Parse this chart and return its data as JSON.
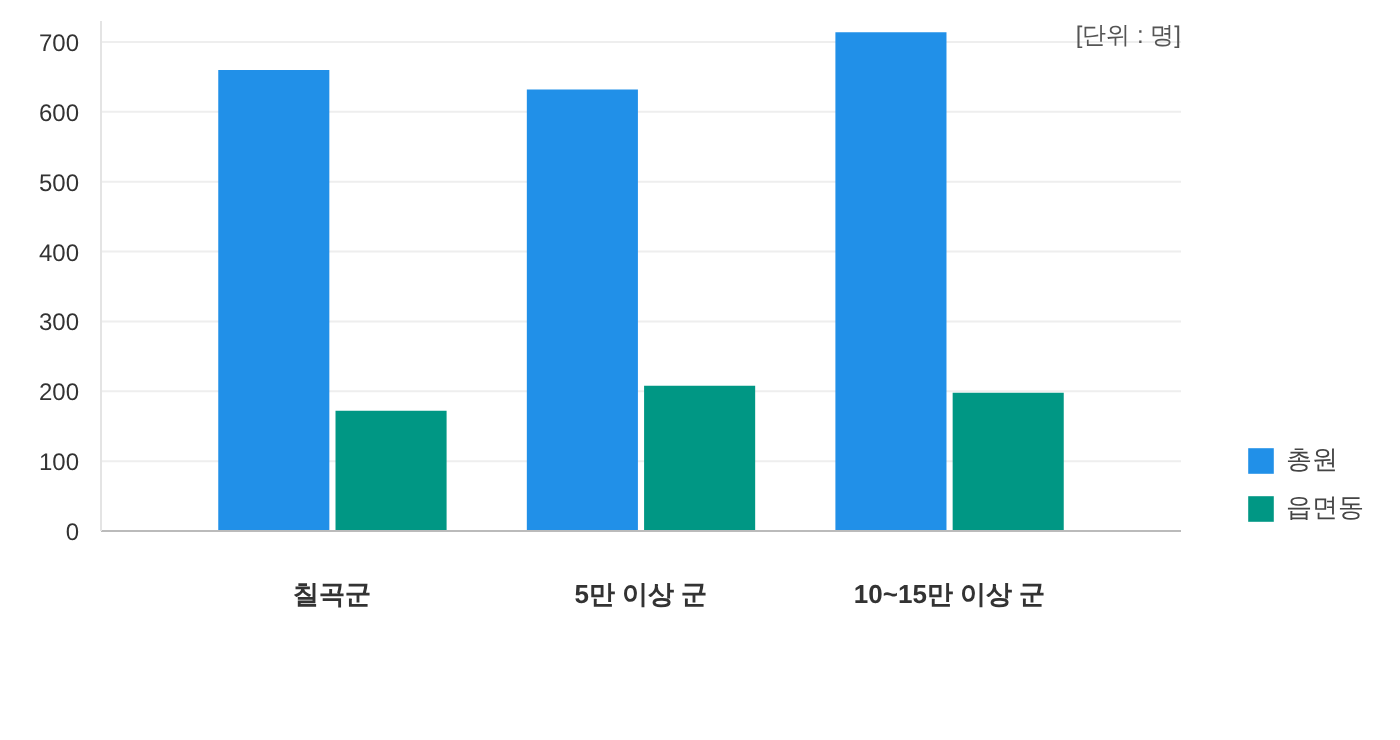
{
  "chart_data": {
    "type": "bar",
    "categories": [
      "칠곡군",
      "5만 이상 군",
      "10~15만 이상 군"
    ],
    "series": [
      {
        "name": "총원",
        "color": "#2190e8",
        "values": [
          660,
          632,
          714
        ]
      },
      {
        "name": "읍면동",
        "color": "#009784",
        "values": [
          172,
          208,
          198
        ]
      }
    ],
    "ylim": [
      0,
      730
    ],
    "yticks": [
      0,
      100,
      200,
      300,
      400,
      500,
      600,
      700
    ],
    "grid": "y",
    "legend": "bottom right",
    "annotations": [
      "[단위 : 명]"
    ]
  }
}
